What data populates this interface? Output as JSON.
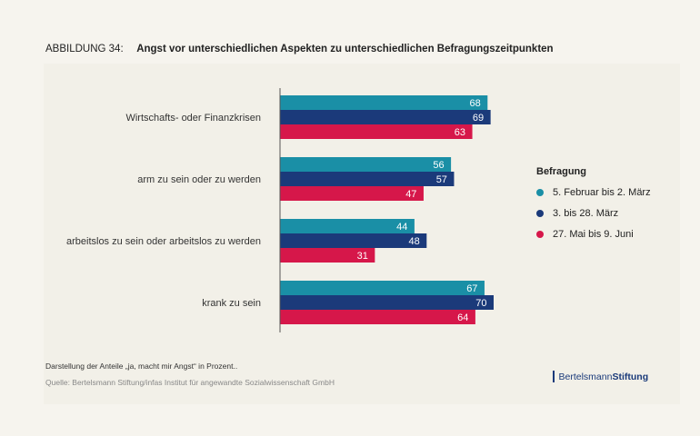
{
  "header": {
    "figure_label": "ABBILDUNG 34:",
    "title": "Angst vor unterschiedlichen Aspekten zu unterschiedlichen Befragungszeitpunkten"
  },
  "legend": {
    "title": "Befragung",
    "items": [
      {
        "label": "5. Februar bis 2. März",
        "color": "#1a8fa6"
      },
      {
        "label": "3. bis 28. März",
        "color": "#1b3a7a"
      },
      {
        "label": "27. Mai bis 9. Juni",
        "color": "#d6174a"
      }
    ]
  },
  "footer": {
    "note": "Darstellung der Anteile „ja, macht mir Angst“ in Prozent..",
    "source": "Quelle: Bertelsmann Stiftung/infas Institut für angewandte Sozialwissenschaft GmbH",
    "logo_part1": "Bertelsmann",
    "logo_part2": "Stiftung"
  },
  "chart_data": {
    "type": "bar",
    "orientation": "horizontal",
    "categories": [
      "Wirtschafts- oder Finanzkrisen",
      "arm zu sein oder zu werden",
      "arbeitslos zu sein oder arbeitslos zu werden",
      "krank zu sein"
    ],
    "series": [
      {
        "name": "5. Februar bis 2. März",
        "color": "#1a8fa6",
        "values": [
          68,
          56,
          44,
          67
        ]
      },
      {
        "name": "3. bis 28. März",
        "color": "#1b3a7a",
        "values": [
          69,
          57,
          48,
          70
        ]
      },
      {
        "name": "27. Mai bis 9. Juni",
        "color": "#d6174a",
        "values": [
          63,
          47,
          31,
          64
        ]
      }
    ],
    "xlim": [
      0,
      100
    ],
    "grid": false,
    "legend_position": "right"
  }
}
